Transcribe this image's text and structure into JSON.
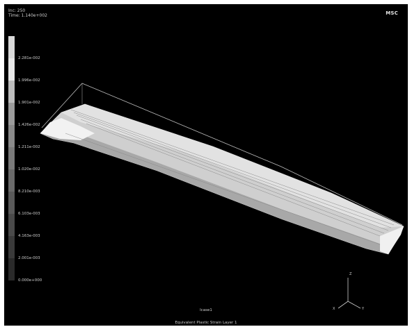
{
  "header": {
    "inc_line": "Inc:   250",
    "time_line": "Time:  1.140e+002"
  },
  "logo": {
    "text": "MSC"
  },
  "legend": {
    "labels": [
      "2.281e-002",
      "1.996e-002",
      "1.901e-002",
      "1.426e-002",
      "1.211e-002",
      "1.020e-002",
      "8.210e-003",
      "6.103e-003",
      "4.163e-003",
      "2.001e-003",
      "0.000e+000"
    ],
    "colors": [
      "#d9d9d9",
      "#e8e8e8",
      "#bdbdbd",
      "#9c9c9c",
      "#8a8a8a",
      "#7a7a7a",
      "#6a6a6a",
      "#5a5a5a",
      "#4a4a4a",
      "#3a3a3a",
      "#2a2a2a"
    ]
  },
  "triad": {
    "x": "X",
    "y": "Y",
    "z": "Z"
  },
  "footer": {
    "load_case": "lcase1",
    "result_label": "Equivalent Plastic Strain Layer 1"
  }
}
